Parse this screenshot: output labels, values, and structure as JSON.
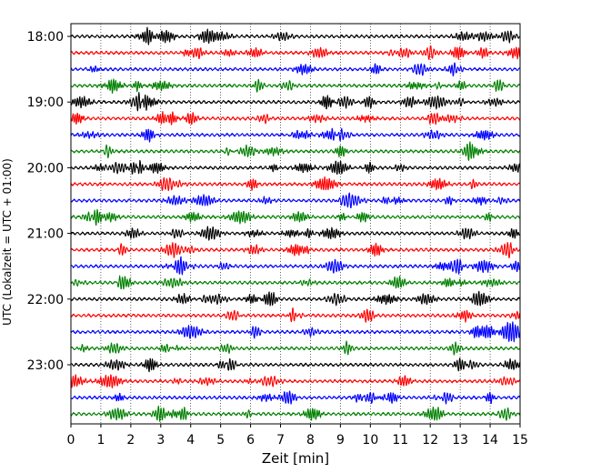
{
  "chart_data": {
    "type": "line",
    "title": "",
    "xlabel": "Zeit  [min]",
    "ylabel": "UTC (Lokalzeit = UTC + 01:00)",
    "xlim": [
      0,
      15
    ],
    "x_ticks": [
      "0",
      "1",
      "2",
      "3",
      "4",
      "5",
      "6",
      "7",
      "8",
      "9",
      "10",
      "11",
      "12",
      "13",
      "14",
      "15"
    ],
    "y_ticks": [
      "18:00",
      "19:00",
      "20:00",
      "21:00",
      "22:00",
      "23:00"
    ],
    "grid": "vertical dotted lines at each minute",
    "row_interval_min": 15,
    "row_colors": [
      "#000000",
      "#ff0000",
      "#0000ff",
      "#008000"
    ],
    "traces": [
      {
        "start": "18:00",
        "color": "#000000"
      },
      {
        "start": "18:15",
        "color": "#ff0000"
      },
      {
        "start": "18:30",
        "color": "#0000ff"
      },
      {
        "start": "18:45",
        "color": "#008000"
      },
      {
        "start": "19:00",
        "color": "#000000"
      },
      {
        "start": "19:15",
        "color": "#ff0000"
      },
      {
        "start": "19:30",
        "color": "#0000ff"
      },
      {
        "start": "19:45",
        "color": "#008000"
      },
      {
        "start": "20:00",
        "color": "#000000"
      },
      {
        "start": "20:15",
        "color": "#ff0000"
      },
      {
        "start": "20:30",
        "color": "#0000ff"
      },
      {
        "start": "20:45",
        "color": "#008000"
      },
      {
        "start": "21:00",
        "color": "#000000"
      },
      {
        "start": "21:15",
        "color": "#ff0000"
      },
      {
        "start": "21:30",
        "color": "#0000ff"
      },
      {
        "start": "21:45",
        "color": "#008000"
      },
      {
        "start": "22:00",
        "color": "#000000"
      },
      {
        "start": "22:15",
        "color": "#ff0000"
      },
      {
        "start": "22:30",
        "color": "#0000ff"
      },
      {
        "start": "22:45",
        "color": "#008000"
      },
      {
        "start": "23:00",
        "color": "#000000"
      },
      {
        "start": "23:15",
        "color": "#ff0000"
      },
      {
        "start": "23:30",
        "color": "#0000ff"
      },
      {
        "start": "23:45",
        "color": "#008000"
      }
    ]
  }
}
